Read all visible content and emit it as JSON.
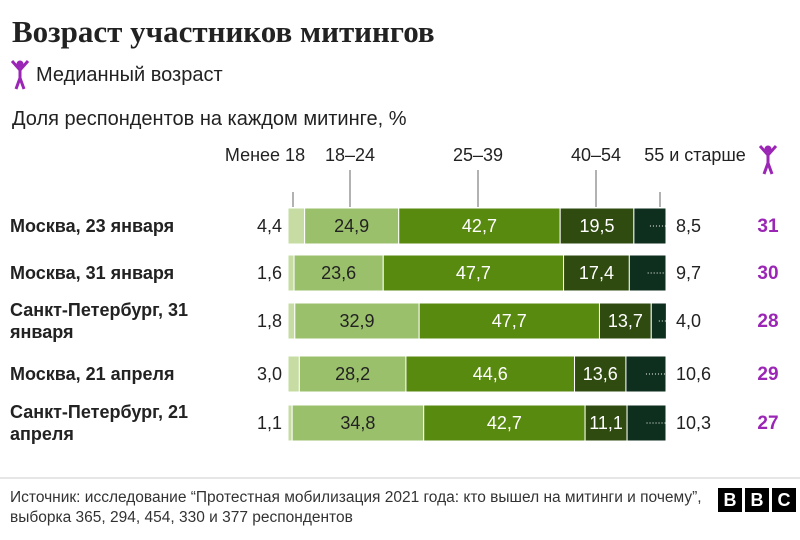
{
  "chart_data": {
    "type": "stacked-bar-horizontal",
    "title": "Возраст участников митингов",
    "median_legend": "Медианный возраст",
    "subtitle": "Доля респондентов на каждом митинге, %",
    "categories": [
      "Москва, 23 января",
      "Москва, 31 января",
      "Санкт-Петербург, 31 января",
      "Москва, 21 апреля",
      "Санкт-Петербург, 21 апреля"
    ],
    "xlim": [
      0,
      100
    ],
    "series": [
      {
        "name": "Менее 18",
        "color": "#c6dca2",
        "values": [
          4.4,
          1.6,
          1.8,
          3.0,
          1.1
        ],
        "value_labels": [
          "4,4",
          "1,6",
          "1,8",
          "3,0",
          "1,1"
        ]
      },
      {
        "name": "18–24",
        "color": "#9bc06b",
        "values": [
          24.9,
          23.6,
          32.9,
          28.2,
          34.8
        ],
        "value_labels": [
          "24,9",
          "23,6",
          "32,9",
          "28,2",
          "34,8"
        ]
      },
      {
        "name": "25–39",
        "color": "#598a10",
        "values": [
          42.7,
          47.7,
          47.7,
          44.6,
          42.7
        ],
        "value_labels": [
          "42,7",
          "47,7",
          "47,7",
          "44,6",
          "42,7"
        ]
      },
      {
        "name": "40–54",
        "color": "#2f4b10",
        "values": [
          19.5,
          17.4,
          13.7,
          13.6,
          11.1
        ],
        "value_labels": [
          "19,5",
          "17,4",
          "13,7",
          "13,6",
          "11,1"
        ]
      },
      {
        "name": "55 и старше",
        "color": "#0e2e1e",
        "values": [
          8.5,
          9.7,
          4.0,
          10.6,
          10.3
        ],
        "value_labels": [
          "8,5",
          "9,7",
          "4,0",
          "10,6",
          "10,3"
        ]
      }
    ],
    "medians": {
      "color": "#9b26b6",
      "values": [
        31,
        30,
        28,
        29,
        27
      ]
    },
    "source": "Источник: исследование “Протестная мобилизация 2021 года: кто вышел на митинги и почему”, выборка 365, 294, 454, 330 и 377 респондентов",
    "logo": [
      "B",
      "B",
      "C"
    ]
  }
}
